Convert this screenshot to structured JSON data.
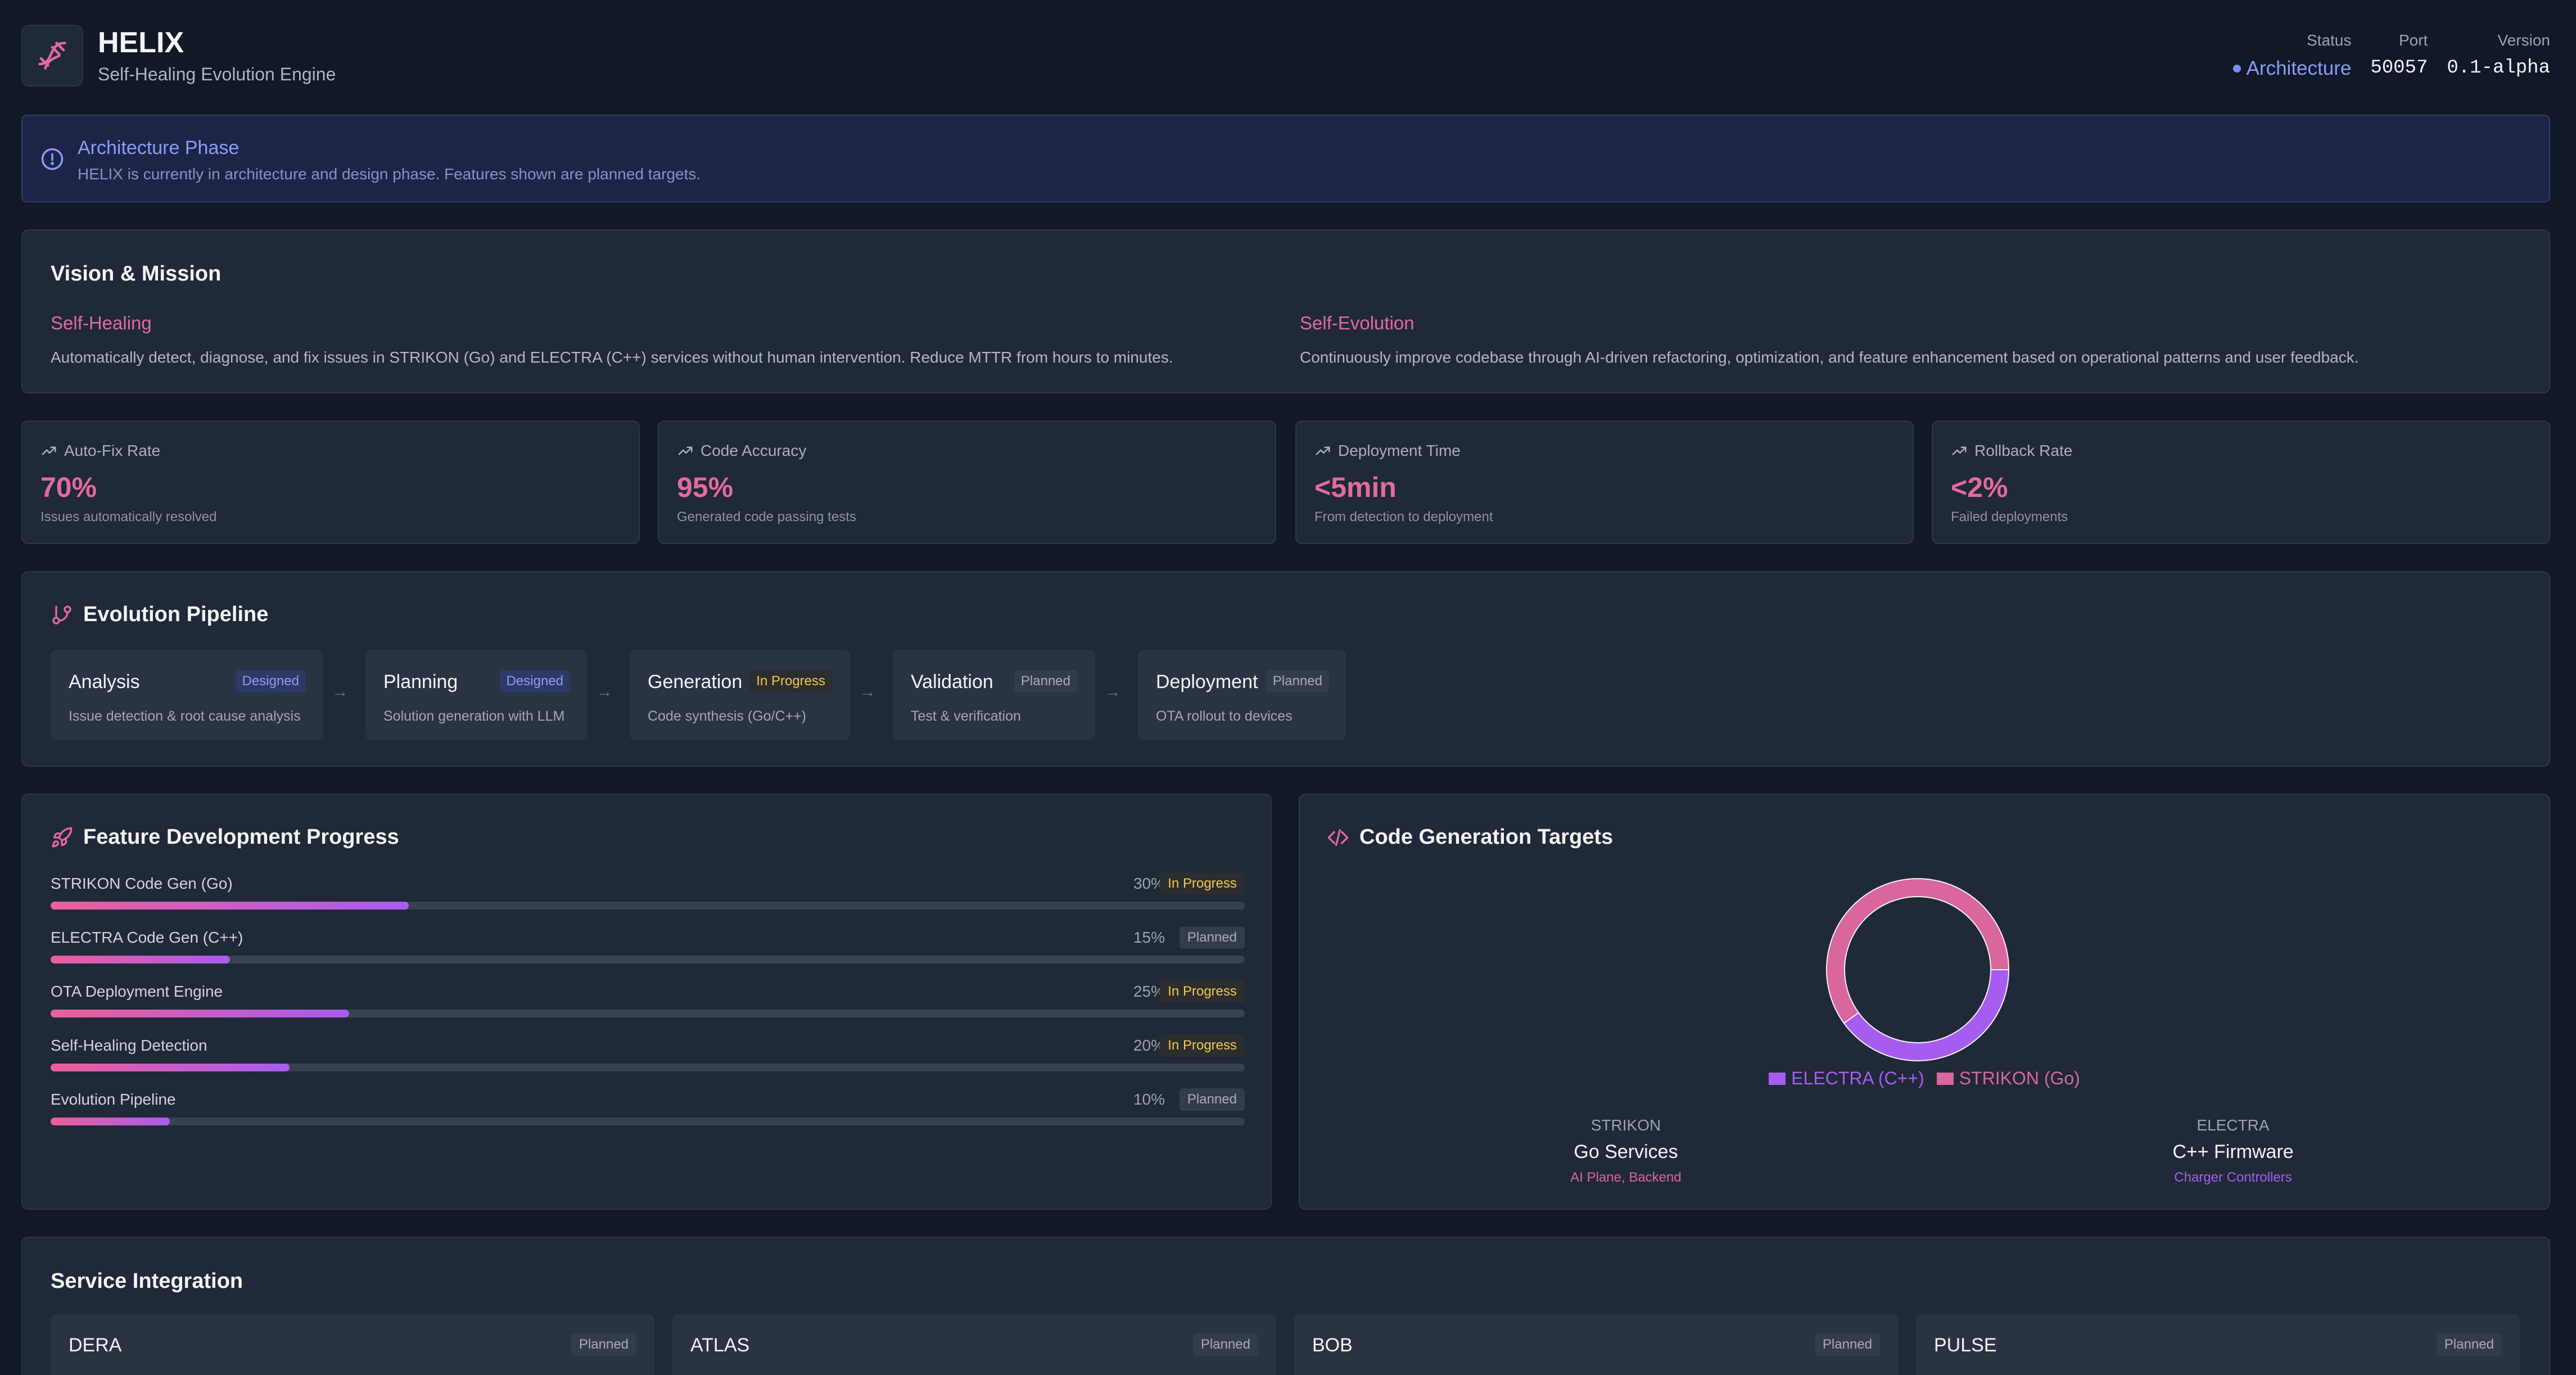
{
  "header": {
    "title": "HELIX",
    "subtitle": "Self-Healing Evolution Engine",
    "status_label": "Status",
    "status_value": "Architecture",
    "port_label": "Port",
    "port_value": "50057",
    "version_label": "Version",
    "version_value": "0.1-alpha",
    "logo_icon": "dna-helix-icon"
  },
  "banner": {
    "title": "Architecture Phase",
    "text": "HELIX is currently in architecture and design phase. Features shown are planned targets.",
    "icon": "info-circle-icon"
  },
  "vision": {
    "title": "Vision & Mission",
    "items": [
      {
        "heading": "Self-Healing",
        "text": "Automatically detect, diagnose, and fix issues in STRIKON (Go) and ELECTRA (C++) services without human intervention. Reduce MTTR from hours to minutes."
      },
      {
        "heading": "Self-Evolution",
        "text": "Continuously improve codebase through AI-driven refactoring, optimization, and feature enhancement based on operational patterns and user feedback."
      }
    ]
  },
  "metrics": [
    {
      "label": "Auto-Fix Rate",
      "value": "70%",
      "desc": "Issues automatically resolved",
      "icon": "trending-up-icon"
    },
    {
      "label": "Code Accuracy",
      "value": "95%",
      "desc": "Generated code passing tests",
      "icon": "trending-up-icon"
    },
    {
      "label": "Deployment Time",
      "value": "<5min",
      "desc": "From detection to deployment",
      "icon": "trending-up-icon"
    },
    {
      "label": "Rollback Rate",
      "value": "<2%",
      "desc": "Failed deployments",
      "icon": "trending-up-icon"
    }
  ],
  "pipeline": {
    "title": "Evolution Pipeline",
    "icon": "git-branch-icon",
    "arrow": "→",
    "stages": [
      {
        "name": "Analysis",
        "badge": "Designed",
        "desc": "Issue detection & root cause analysis"
      },
      {
        "name": "Planning",
        "badge": "Designed",
        "desc": "Solution generation with LLM"
      },
      {
        "name": "Generation",
        "badge": "In Progress",
        "desc": "Code synthesis (Go/C++)"
      },
      {
        "name": "Validation",
        "badge": "Planned",
        "desc": "Test & verification"
      },
      {
        "name": "Deployment",
        "badge": "Planned",
        "desc": "OTA rollout to devices"
      }
    ]
  },
  "progress": {
    "title": "Feature Development Progress",
    "icon": "rocket-icon",
    "items": [
      {
        "name": "STRIKON Code Gen (Go)",
        "pct_label": "30%",
        "pct": 30,
        "badge": "In Progress"
      },
      {
        "name": "ELECTRA Code Gen (C++)",
        "pct_label": "15%",
        "pct": 15,
        "badge": "Planned"
      },
      {
        "name": "OTA Deployment Engine",
        "pct_label": "25%",
        "pct": 25,
        "badge": "In Progress"
      },
      {
        "name": "Self-Healing Detection",
        "pct_label": "20%",
        "pct": 20,
        "badge": "In Progress"
      },
      {
        "name": "Evolution Pipeline",
        "pct_label": "10%",
        "pct": 10,
        "badge": "Planned"
      }
    ]
  },
  "targets": {
    "title": "Code Generation Targets",
    "icon": "code-icon",
    "chart_data": {
      "type": "pie",
      "categories": [
        "ELECTRA (C++)",
        "STRIKON (Go)"
      ],
      "values": [
        40,
        60
      ],
      "colors": [
        "#a75cf0",
        "#d9669c"
      ],
      "legend": "bottom"
    },
    "columns": [
      {
        "label": "STRIKON",
        "name": "Go Services",
        "desc": "AI Plane, Backend",
        "color": "#d9669c"
      },
      {
        "label": "ELECTRA",
        "name": "C++ Firmware",
        "desc": "Charger Controllers",
        "color": "#a75cf0"
      }
    ]
  },
  "services": {
    "title": "Service Integration",
    "items": [
      {
        "name": "DERA",
        "badge": "Planned"
      },
      {
        "name": "ATLAS",
        "badge": "Planned"
      },
      {
        "name": "BOB",
        "badge": "Planned"
      },
      {
        "name": "PULSE",
        "badge": "Planned"
      }
    ]
  }
}
